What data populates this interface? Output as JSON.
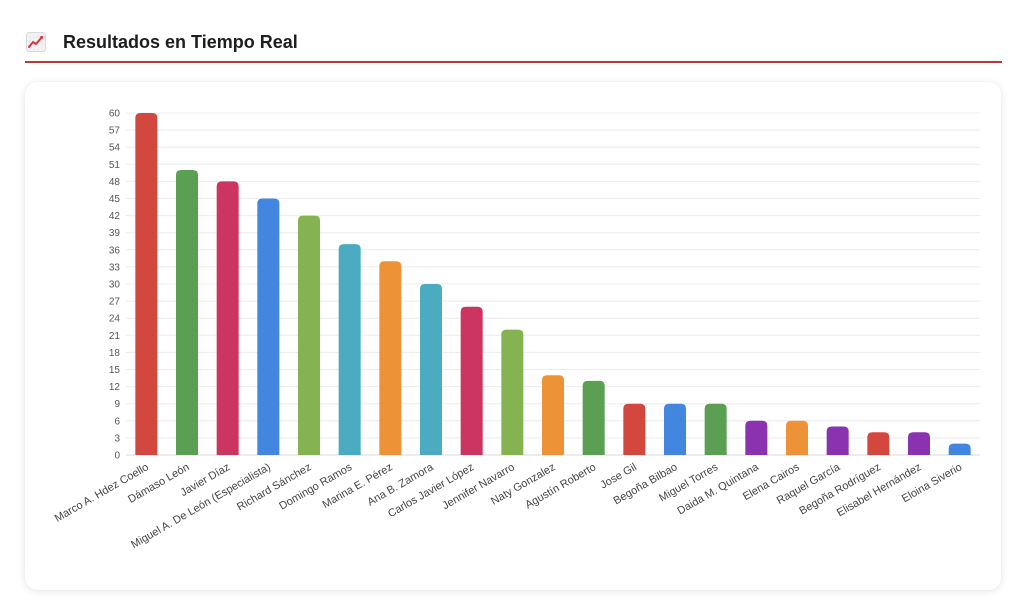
{
  "header": {
    "title": "Resultados en Tiempo Real",
    "icon": "chart-increasing-icon"
  },
  "colors": {
    "accent_rule": "#b83a2e",
    "gridline": "#ececec"
  },
  "chart_data": {
    "type": "bar",
    "title": "",
    "xlabel": "",
    "ylabel": "",
    "ylim": [
      0,
      60
    ],
    "yticks": [
      0,
      3,
      6,
      9,
      12,
      15,
      18,
      21,
      24,
      27,
      30,
      33,
      36,
      39,
      42,
      45,
      48,
      51,
      54,
      57,
      60
    ],
    "grid": true,
    "legend": "none",
    "categories": [
      "Marco A. Hdez Coello",
      "Dámaso León",
      "Javier Díaz",
      "Miguel A. De León (Especialista)",
      "Richard Sánchez",
      "Domingo Ramos",
      "Marina E. Pérez",
      "Ana B. Zamora",
      "Carlos Javier López",
      "Jennifer Navarro",
      "Naty Gonzalez",
      "Agustín Roberto",
      "Jose Gil",
      "Begoña Bilbao",
      "Miguel Torres",
      "Daida M. Quintana",
      "Elena Cairos",
      "Raquel García",
      "Begoña Rodríguez",
      "Elisabel Hernández",
      "Eloina Siverio"
    ],
    "values": [
      60,
      50,
      48,
      45,
      42,
      37,
      34,
      30,
      26,
      22,
      14,
      13,
      9,
      9,
      9,
      6,
      6,
      5,
      4,
      4,
      2
    ],
    "bar_colors": [
      "#d2483f",
      "#5ba052",
      "#cc3462",
      "#4386e0",
      "#86b352",
      "#4babc0",
      "#ee9237",
      "#4babc0",
      "#cc3462",
      "#86b352",
      "#ee9237",
      "#5ba052",
      "#d2483f",
      "#4386e0",
      "#5ba052",
      "#8a32b0",
      "#ee9237",
      "#8a32b0",
      "#d2483f",
      "#8a32b0",
      "#4386e0"
    ]
  }
}
